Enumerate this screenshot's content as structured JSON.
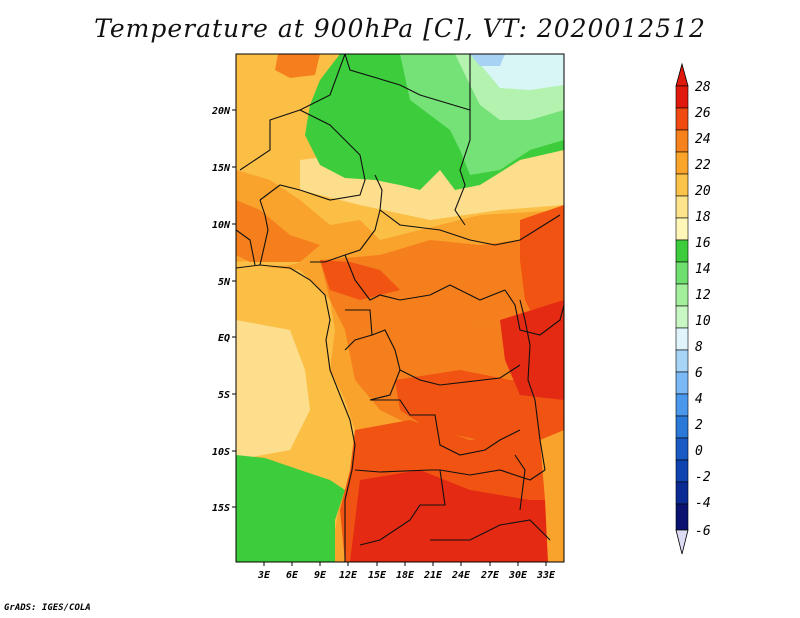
{
  "title": "Temperature at 900hPa [C], VT: 2020012512",
  "credit": "GrADS: IGES/COLA",
  "map": {
    "lon_labels": [
      "3E",
      "6E",
      "9E",
      "12E",
      "15E",
      "18E",
      "21E",
      "24E",
      "27E",
      "30E",
      "33E"
    ],
    "lat_labels": [
      "20N",
      "15N",
      "10N",
      "5N",
      "EQ",
      "5S",
      "10S",
      "15S"
    ]
  },
  "colorbar": {
    "levels": [
      "28",
      "26",
      "24",
      "22",
      "20",
      "18",
      "16",
      "14",
      "12",
      "10",
      "8",
      "6",
      "4",
      "2",
      "0",
      "-2",
      "-4",
      "-6"
    ],
    "colors": [
      "#a50000",
      "#e0190c",
      "#f04a10",
      "#f7821c",
      "#faa52a",
      "#fcc34a",
      "#fde38c",
      "#3ccc3c",
      "#6fe06f",
      "#a4ef9c",
      "#c8f7c4",
      "#a6d5f7",
      "#7ab9f5",
      "#4a98ec",
      "#2a78d8",
      "#1a5ac4",
      "#0f3aa4",
      "#0a1a7a",
      "#dcdcf5"
    ]
  },
  "legend_colors": {
    "c28plus": "#e42a12",
    "c26": "#f05312",
    "c24": "#f57f1c",
    "c22": "#f9a22c",
    "c20": "#fbbf46",
    "c18": "#fdde8c",
    "c16": "#fff2b4",
    "c14": "#3ccc3c",
    "c12": "#74e276",
    "c10": "#b4f2b0",
    "c8": "#d8f6f6",
    "c6": "#a8d2f4"
  }
}
